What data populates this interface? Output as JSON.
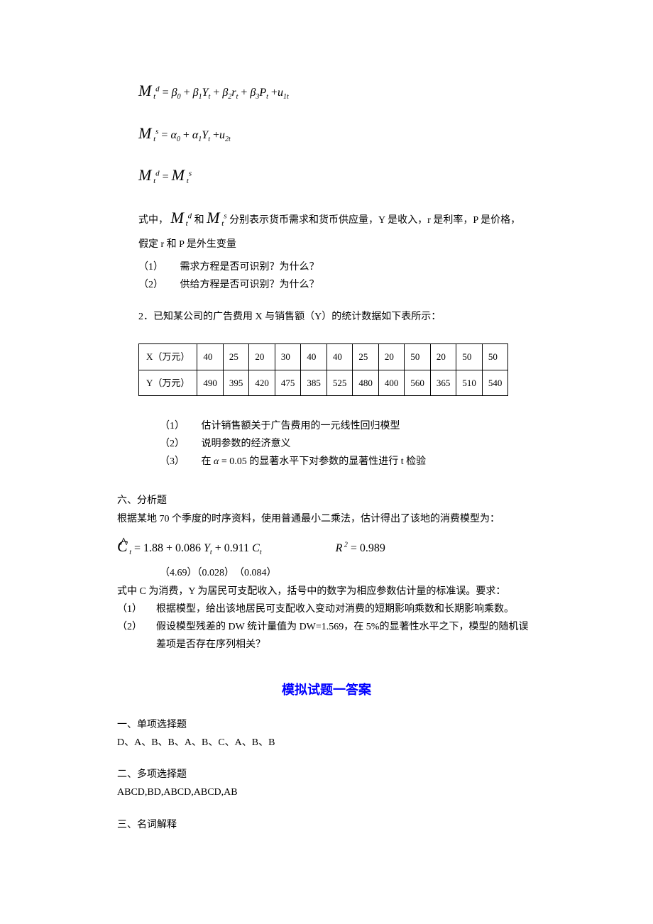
{
  "formulas": {
    "demand": "M_t^d = β₀ + β₁Y_t + β₂r_t + β₃P_t + u_1t",
    "supply": "M_t^s = α₀ + α₁Y_t + u_2t",
    "equil": "M_t^d = M_t^s"
  },
  "desc": {
    "line1_a": "式中，",
    "line1_b": "和",
    "line1_c": "分别表示货币需求和货币供应量，Y 是收入，r 是利率，P 是价格，",
    "line2": "假定 r 和 P 是外生变量",
    "q1_label": "（1）",
    "q1_text": "需求方程是否可识别？为什么？",
    "q2_label": "（2）",
    "q2_text": "供给方程是否可识别？为什么？"
  },
  "problem2": {
    "intro": "2．已知某公司的广告费用 X 与销售额（Y）的统计数据如下表所示：",
    "row1_header": "X（万元）",
    "row2_header": "Y（万元）",
    "x_values": [
      "40",
      "25",
      "20",
      "30",
      "40",
      "40",
      "25",
      "20",
      "50",
      "20",
      "50",
      "50"
    ],
    "y_values": [
      "490",
      "395",
      "420",
      "475",
      "385",
      "525",
      "480",
      "400",
      "560",
      "365",
      "510",
      "540"
    ],
    "q1_label": "（1）",
    "q1_text": "估计销售额关于广告费用的一元线性回归模型",
    "q2_label": "（2）",
    "q2_text": "说明参数的经济意义",
    "q3_label": "（3）",
    "q3_text_a": "在",
    "q3_alpha": "α = 0.05",
    "q3_text_b": "的显著水平下对参数的显著性进行 t 检验"
  },
  "section6": {
    "heading": "六、分析题",
    "intro": "根据某地 70 个季度的时序资料，使用普通最小二乘法，估计得出了该地的消费模型为：",
    "model_eq": "Ĉ_t = 1.88 + 0.086 Y_t + 0.911 C_t",
    "r2_label": "R² = 0.989",
    "se_line": "（4.69）（0.028）　（0.084）",
    "desc": "式中 C 为消费，Y 为居民可支配收入，括号中的数字为相应参数估计量的标准误。要求：",
    "q1_label": "（1）",
    "q1_text": "根据模型，给出该地居民可支配收入变动对消费的短期影响乘数和长期影响乘数。",
    "q2_label": "（2）",
    "q2_text": "假设模型残差的 DW 统计量值为 DW=1.569，在 5%的显著性水平之下，模型的随机误差项是否存在序列相关？"
  },
  "answers": {
    "title": "模拟试题一答案",
    "title_color": "#0000ff",
    "s1_head": "一、单项选择题",
    "s1_ans": "D、A、B、B、A、B、C、A、B、B",
    "s2_head": "二、多项选择题",
    "s2_ans": "ABCD,BD,ABCD,ABCD,AB",
    "s3_head": "三、名词解释"
  },
  "style": {
    "body_font_size": 14,
    "formula_font_size": 16,
    "table_font_size": 13,
    "answer_title_font_size": 18,
    "text_color": "#000000",
    "background_color": "#ffffff",
    "border_color": "#000000"
  }
}
